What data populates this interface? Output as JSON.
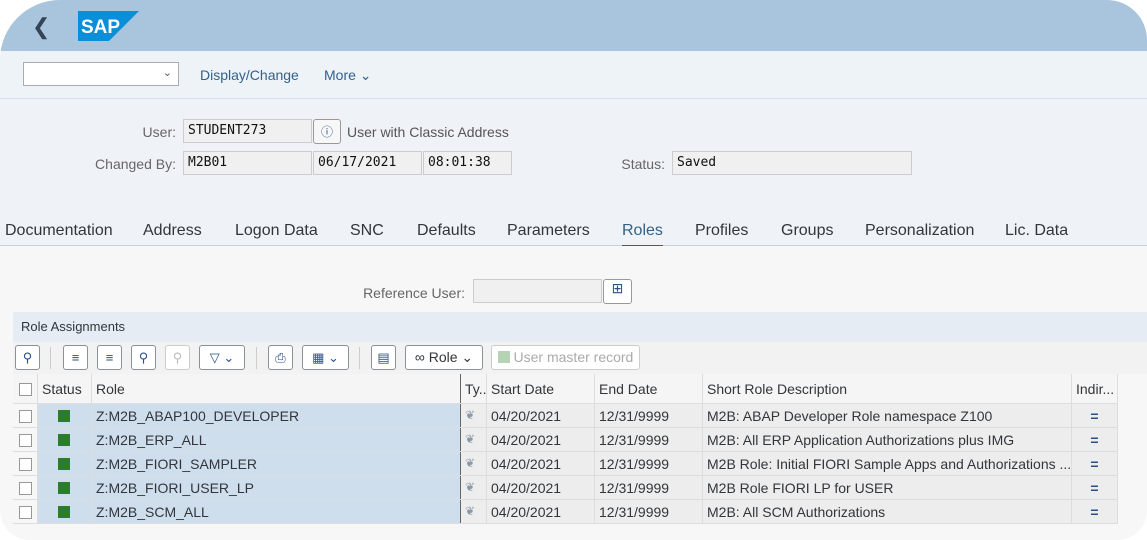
{
  "header": {
    "brand": "SAP"
  },
  "toolbar": {
    "dropdown_value": "",
    "display_change": "Display/Change",
    "more": "More"
  },
  "form": {
    "user_label": "User:",
    "user_value": "STUDENT273",
    "user_type": "User with Classic Address",
    "changed_by_label": "Changed By:",
    "changed_by_value": "M2B01",
    "changed_date": "06/17/2021",
    "changed_time": "08:01:38",
    "status_label": "Status:",
    "status_value": "Saved"
  },
  "tabs": [
    "Documentation",
    "Address",
    "Logon Data",
    "SNC",
    "Defaults",
    "Parameters",
    "Roles",
    "Profiles",
    "Groups",
    "Personalization",
    "Lic. Data"
  ],
  "active_tab": "Roles",
  "reference_user": {
    "label": "Reference User:",
    "value": ""
  },
  "panel_title": "Role Assignments",
  "grid_toolbar": {
    "role_button": "Role",
    "user_master_record": "User master record"
  },
  "columns": [
    "Status",
    "Role",
    "Ty...",
    "Start Date",
    "End Date",
    "Short Role Description",
    "Indir..."
  ],
  "rows": [
    {
      "role": "Z:M2B_ABAP100_DEVELOPER",
      "start": "04/20/2021",
      "end": "12/31/9999",
      "desc": "M2B: ABAP Developer Role namespace Z100",
      "indir": "="
    },
    {
      "role": "Z:M2B_ERP_ALL",
      "start": "04/20/2021",
      "end": "12/31/9999",
      "desc": "M2B: All ERP Application Authorizations plus IMG",
      "indir": "="
    },
    {
      "role": "Z:M2B_FIORI_SAMPLER",
      "start": "04/20/2021",
      "end": "12/31/9999",
      "desc": "M2B Role: Initial FIORI Sample Apps and Authorizations ...",
      "indir": "="
    },
    {
      "role": "Z:M2B_FIORI_USER_LP",
      "start": "04/20/2021",
      "end": "12/31/9999",
      "desc": "M2B Role FIORI LP for USER",
      "indir": "="
    },
    {
      "role": "Z:M2B_SCM_ALL",
      "start": "04/20/2021",
      "end": "12/31/9999",
      "desc": "M2B: All SCM Authorizations",
      "indir": "="
    }
  ],
  "colors": {
    "header": "#a9c4dd",
    "accent": "#346187",
    "status_green": "#2b7d2b",
    "selection": "#cfdeed"
  }
}
